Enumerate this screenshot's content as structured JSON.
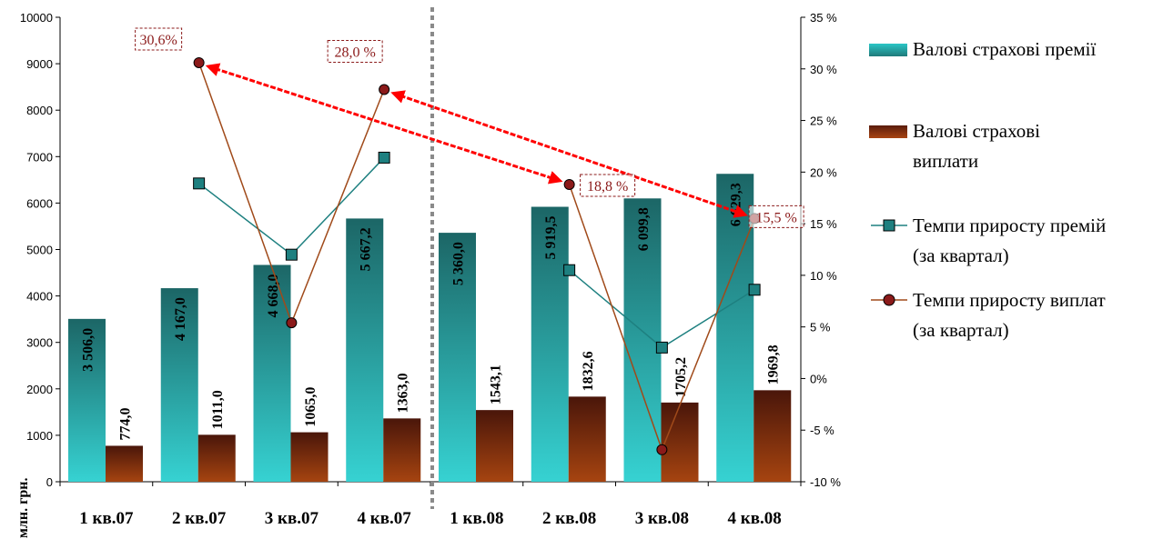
{
  "chart_data": {
    "type": "bar",
    "categories": [
      "1 кв.07",
      "2 кв.07",
      "3 кв.07",
      "4 кв.07",
      "1 кв.08",
      "2 кв.08",
      "3 кв.08",
      "4 кв.08"
    ],
    "series": [
      {
        "name": "Валові страхові премії",
        "axis": "left",
        "kind": "bar",
        "values": [
          3506.0,
          4167.0,
          4668.0,
          5667.2,
          5360.0,
          5919.5,
          6099.8,
          6629.3
        ],
        "labels": [
          "3 506,0",
          "4 167,0",
          "4 668,0",
          "5 667,2",
          "5 360,0",
          "5 919,5",
          "6 099,8",
          "6 629,3"
        ]
      },
      {
        "name": "Валові страхові виплати",
        "axis": "left",
        "kind": "bar",
        "values": [
          774.0,
          1011.0,
          1065.0,
          1363.0,
          1543.1,
          1832.6,
          1705.2,
          1969.8
        ],
        "labels": [
          "774,0",
          "1011,0",
          "1065,0",
          "1363,0",
          "1543,1",
          "1832,6",
          "1705,2",
          "1969,8"
        ]
      },
      {
        "name": "Темпи приросту премій (за квартал)",
        "axis": "right",
        "kind": "line",
        "values": [
          null,
          18.9,
          12.0,
          21.4,
          null,
          10.5,
          3.0,
          8.6
        ]
      },
      {
        "name": "Темпи приросту виплат (за квартал)",
        "axis": "right",
        "kind": "line",
        "values": [
          null,
          30.6,
          5.4,
          28.0,
          null,
          18.8,
          -6.9,
          15.5
        ]
      }
    ],
    "annotations": [
      "30,6%",
      "28,0 %",
      "18,8 %",
      "15,5 %"
    ],
    "ylabel": "млн. грн.",
    "ylim": [
      0,
      10000
    ],
    "yticks": [
      "0",
      "1000",
      "2000",
      "3000",
      "4000",
      "5000",
      "6000",
      "7000",
      "8000",
      "9000",
      "10000"
    ],
    "y2lim": [
      -10,
      35
    ],
    "y2ticks": [
      "-10 %",
      "-5 %",
      "0%",
      "5 %",
      "10 %",
      "15 %",
      "20 %",
      "25 %",
      "30 %",
      "35 %"
    ],
    "legend": "right",
    "grid": false,
    "colors": {
      "premiums": "#2ac6c6",
      "payments": "#8b3a12",
      "premium_line": "#1e8080",
      "payment_line": "#a04a1a",
      "arrow": "#ff0000",
      "annotation": "#8b1a1a"
    }
  }
}
